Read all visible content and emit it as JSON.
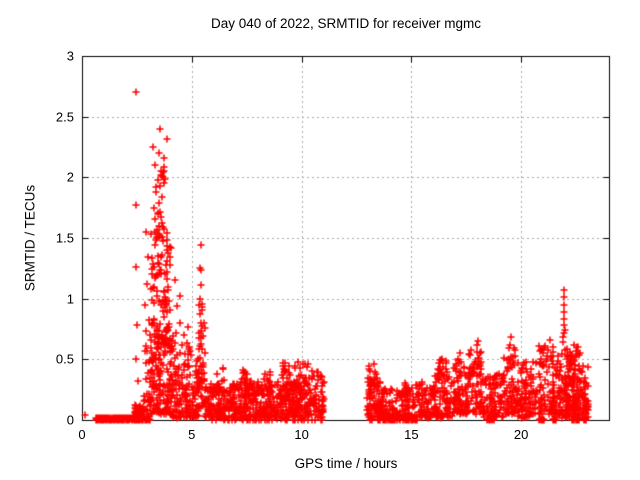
{
  "chart_data": {
    "type": "scatter",
    "title": "Day 040 of 2022, SRMTID for receiver mgmc",
    "xlabel": "GPS time / hours",
    "ylabel": "SRMTID / TECUs",
    "xlim": [
      0,
      24
    ],
    "ylim": [
      0,
      3
    ],
    "xticks": [
      0,
      5,
      10,
      15,
      20
    ],
    "xtick_labels": [
      "0",
      "5",
      "10",
      "15",
      "20"
    ],
    "yticks": [
      0,
      0.5,
      1,
      1.5,
      2,
      2.5,
      3
    ],
    "ytick_labels": [
      "0",
      "0.5",
      "1",
      "1.5",
      "2",
      "2.5",
      "3"
    ],
    "grid": true,
    "legend": "none",
    "marker": "plus",
    "marker_color": "#ff0000",
    "grid_color": "#ababab",
    "axis_color": "#000000",
    "background": "#ffffff",
    "seed": 20220040,
    "data_gap_hours": [
      11.0,
      13.0
    ],
    "highlight_points": [
      [
        0.15,
        0.04
      ],
      [
        2.46,
        2.7
      ],
      [
        2.46,
        1.77
      ],
      [
        2.48,
        1.26
      ],
      [
        2.51,
        0.78
      ],
      [
        2.44,
        0.5
      ],
      [
        2.53,
        0.32
      ],
      [
        2.92,
        1.55
      ],
      [
        3.02,
        1.34
      ],
      [
        2.97,
        1.12
      ],
      [
        2.88,
        0.95
      ],
      [
        3.55,
        2.4
      ],
      [
        3.88,
        2.32
      ],
      [
        3.22,
        2.25
      ],
      [
        3.5,
        2.2
      ],
      [
        3.72,
        2.16
      ],
      [
        3.34,
        2.1
      ],
      [
        3.62,
        2.05
      ],
      [
        3.45,
        1.98
      ],
      [
        3.57,
        1.93
      ],
      [
        3.36,
        1.88
      ],
      [
        3.66,
        1.84
      ],
      [
        3.52,
        1.79
      ],
      [
        3.3,
        1.75
      ],
      [
        3.47,
        1.71
      ],
      [
        3.58,
        1.67
      ],
      [
        3.64,
        1.62
      ],
      [
        3.42,
        1.57
      ],
      [
        3.53,
        1.52
      ],
      [
        4.22,
        1.15
      ],
      [
        4.45,
        1.02
      ],
      [
        4.32,
        0.94
      ],
      [
        5.4,
        1.44
      ],
      [
        5.38,
        1.25
      ],
      [
        5.42,
        1.24
      ],
      [
        5.4,
        1.11
      ],
      [
        5.45,
        0.96
      ],
      [
        9.15,
        0.47
      ],
      [
        9.7,
        0.43
      ],
      [
        16.4,
        0.5
      ],
      [
        17.2,
        0.55
      ],
      [
        18.02,
        0.65
      ],
      [
        17.98,
        0.62
      ],
      [
        19.55,
        0.68
      ],
      [
        19.5,
        0.62
      ],
      [
        21.3,
        0.66
      ],
      [
        21.9,
        0.68
      ],
      [
        21.95,
        1.07
      ],
      [
        21.97,
        1.01
      ],
      [
        21.94,
        0.95
      ],
      [
        21.96,
        0.89
      ],
      [
        21.93,
        0.83
      ],
      [
        21.97,
        0.78
      ],
      [
        21.95,
        0.72
      ],
      [
        21.92,
        0.64
      ],
      [
        21.98,
        0.58
      ],
      [
        22.0,
        0.74
      ],
      [
        22.4,
        0.62
      ],
      [
        22.55,
        0.6
      ]
    ],
    "clusters": [
      {
        "x0": 0.62,
        "x1": 2.58,
        "n": 300,
        "y0": 0,
        "y1": 0.02,
        "b": 1
      },
      {
        "x0": 2.4,
        "x1": 2.8,
        "n": 80,
        "y0": 0,
        "y1": 0.12,
        "b": 2
      },
      {
        "x0": 2.58,
        "x1": 2.8,
        "n": 25,
        "y0": 0,
        "y1": 0.05,
        "b": 1.5
      },
      {
        "x0": 2.8,
        "x1": 3.15,
        "n": 45,
        "y0": 0,
        "y1": 0.85,
        "b": 2
      },
      {
        "x0": 3.15,
        "x1": 4.05,
        "n": 230,
        "y0": 0.05,
        "y1": 1.55,
        "b": 1.6
      },
      {
        "x0": 3.3,
        "x1": 3.8,
        "n": 22,
        "y0": 1.5,
        "y1": 2.1,
        "b": 1.3
      },
      {
        "x0": 4.05,
        "x1": 4.95,
        "n": 120,
        "y0": 0.02,
        "y1": 0.8,
        "b": 2
      },
      {
        "x0": 4.95,
        "x1": 5.3,
        "n": 45,
        "y0": 0.02,
        "y1": 0.55,
        "b": 1.7
      },
      {
        "x0": 5.3,
        "x1": 5.6,
        "n": 55,
        "y0": 0.1,
        "y1": 1.0,
        "b": 1.4
      },
      {
        "x0": 5.6,
        "x1": 7.1,
        "n": 150,
        "y0": 0.02,
        "y1": 0.3,
        "b": 1.5
      },
      {
        "x0": 6.15,
        "x1": 6.5,
        "n": 15,
        "y0": 0.22,
        "y1": 0.45,
        "b": 1.2
      },
      {
        "x0": 7.1,
        "x1": 8.1,
        "n": 110,
        "y0": 0.02,
        "y1": 0.32,
        "b": 1.5
      },
      {
        "x0": 7.25,
        "x1": 7.55,
        "n": 12,
        "y0": 0.22,
        "y1": 0.42,
        "b": 1.2
      },
      {
        "x0": 8.1,
        "x1": 9.4,
        "n": 140,
        "y0": 0.02,
        "y1": 0.33,
        "b": 1.5
      },
      {
        "x0": 8.3,
        "x1": 8.6,
        "n": 12,
        "y0": 0.22,
        "y1": 0.4,
        "b": 1.2
      },
      {
        "x0": 9.1,
        "x1": 9.8,
        "n": 35,
        "y0": 0.15,
        "y1": 0.48,
        "b": 1.3
      },
      {
        "x0": 9.4,
        "x1": 10.45,
        "n": 120,
        "y0": 0.02,
        "y1": 0.35,
        "b": 1.5
      },
      {
        "x0": 9.8,
        "x1": 10.3,
        "n": 25,
        "y0": 0.2,
        "y1": 0.5,
        "b": 1.2
      },
      {
        "x0": 10.45,
        "x1": 11.02,
        "n": 60,
        "y0": 0.02,
        "y1": 0.4,
        "b": 1.5
      },
      {
        "x0": 5.7,
        "x1": 11.0,
        "n": 45,
        "y0": 0,
        "y1": 0.005,
        "b": 1
      },
      {
        "x0": 12.98,
        "x1": 13.6,
        "n": 70,
        "y0": 0.02,
        "y1": 0.35,
        "b": 1.5
      },
      {
        "x0": 13.05,
        "x1": 13.5,
        "n": 18,
        "y0": 0.25,
        "y1": 0.47,
        "b": 1.2
      },
      {
        "x0": 13.6,
        "x1": 16.0,
        "n": 210,
        "y0": 0.02,
        "y1": 0.27,
        "b": 1.6
      },
      {
        "x0": 14.4,
        "x1": 14.8,
        "n": 10,
        "y0": 0.2,
        "y1": 0.33,
        "b": 1.2
      },
      {
        "x0": 15.2,
        "x1": 15.5,
        "n": 10,
        "y0": 0.2,
        "y1": 0.36,
        "b": 1.2
      },
      {
        "x0": 13.05,
        "x1": 15.3,
        "n": 60,
        "y0": 0,
        "y1": 0.005,
        "b": 1
      },
      {
        "x0": 16.0,
        "x1": 16.9,
        "n": 90,
        "y0": 0.02,
        "y1": 0.42,
        "b": 1.6
      },
      {
        "x0": 16.2,
        "x1": 16.6,
        "n": 15,
        "y0": 0.3,
        "y1": 0.5,
        "b": 1.2
      },
      {
        "x0": 16.9,
        "x1": 17.6,
        "n": 90,
        "y0": 0.05,
        "y1": 0.52,
        "b": 1.5
      },
      {
        "x0": 17.6,
        "x1": 18.2,
        "n": 70,
        "y0": 0.05,
        "y1": 0.58,
        "b": 1.4
      },
      {
        "x0": 18.2,
        "x1": 19.2,
        "n": 90,
        "y0": 0.02,
        "y1": 0.4,
        "b": 1.7
      },
      {
        "x0": 18.45,
        "x1": 18.75,
        "n": 14,
        "y0": 0,
        "y1": 0.005,
        "b": 1
      },
      {
        "x0": 19.2,
        "x1": 19.8,
        "n": 70,
        "y0": 0.05,
        "y1": 0.6,
        "b": 1.4
      },
      {
        "x0": 19.8,
        "x1": 20.7,
        "n": 100,
        "y0": 0.02,
        "y1": 0.48,
        "b": 1.6
      },
      {
        "x0": 20.8,
        "x1": 21.05,
        "n": 14,
        "y0": 0,
        "y1": 0.005,
        "b": 1
      },
      {
        "x0": 20.8,
        "x1": 21.6,
        "n": 90,
        "y0": 0.05,
        "y1": 0.62,
        "b": 1.4
      },
      {
        "x0": 21.4,
        "x1": 21.6,
        "n": 10,
        "y0": 0,
        "y1": 0.005,
        "b": 1
      },
      {
        "x0": 21.6,
        "x1": 22.1,
        "n": 60,
        "y0": 0.02,
        "y1": 0.55,
        "b": 1.5
      },
      {
        "x0": 22.05,
        "x1": 22.75,
        "n": 130,
        "y0": 0.02,
        "y1": 0.6,
        "b": 1.5
      },
      {
        "x0": 22.3,
        "x1": 22.65,
        "n": 16,
        "y0": 0,
        "y1": 0.005,
        "b": 1
      },
      {
        "x0": 22.75,
        "x1": 23.05,
        "n": 40,
        "y0": 0.02,
        "y1": 0.45,
        "b": 1.6
      },
      {
        "x0": 22.85,
        "x1": 23.0,
        "n": 10,
        "y0": 0,
        "y1": 0.005,
        "b": 1
      }
    ]
  }
}
